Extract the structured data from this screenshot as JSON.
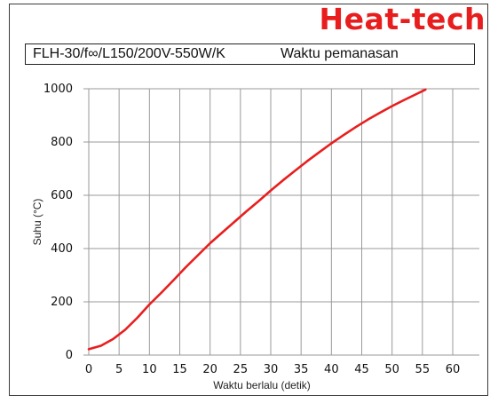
{
  "brand": {
    "name": "Heat-tech",
    "color": "#e81e1e"
  },
  "header": {
    "model": "FLH-30/f∞/L150/200V-550W/K",
    "subtitle": "Waktu pemanasan"
  },
  "chart_data": {
    "type": "line",
    "xlabel": "Waktu berlalu (detik)",
    "ylabel": "Suhu (°C)",
    "xlim": [
      0,
      60
    ],
    "ylim": [
      0,
      1000
    ],
    "xticks": [
      "0",
      "5",
      "10",
      "15",
      "20",
      "25",
      "30",
      "35",
      "40",
      "45",
      "50",
      "55",
      "60"
    ],
    "yticks": [
      "0",
      "200",
      "400",
      "600",
      "800",
      "1000"
    ],
    "grid": true,
    "series": [
      {
        "color": "#e81e1e",
        "x": [
          0,
          2,
          4,
          6,
          8,
          10,
          12,
          14,
          16,
          18,
          20,
          22,
          24,
          26,
          28,
          30,
          32,
          34,
          36,
          38,
          40,
          42,
          44,
          46,
          48,
          50,
          52,
          54,
          55.5
        ],
        "y": [
          22,
          35,
          60,
          95,
          140,
          190,
          235,
          282,
          330,
          375,
          420,
          460,
          500,
          540,
          578,
          618,
          656,
          692,
          728,
          762,
          795,
          826,
          856,
          884,
          910,
          935,
          958,
          980,
          997
        ]
      }
    ]
  }
}
